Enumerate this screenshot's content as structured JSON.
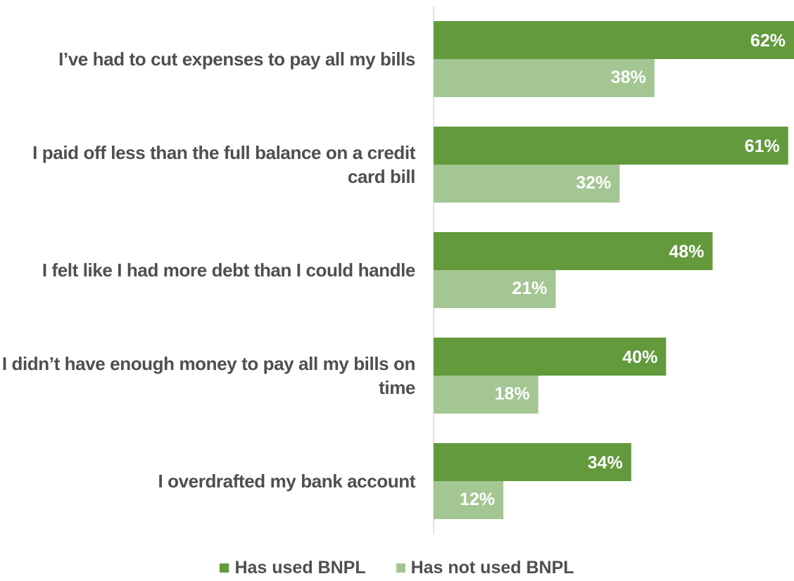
{
  "chart_data": {
    "type": "bar",
    "orientation": "horizontal",
    "title": "",
    "xlabel": "",
    "ylabel": "",
    "categories": [
      "I’ve had to cut expenses to pay all my bills",
      "I paid off less than the full balance on a credit card bill",
      "I felt like I had more debt than I could handle",
      "I didn’t have enough money to pay all my bills on time",
      "I overdrafted my bank account"
    ],
    "series": [
      {
        "name": "Has used BNPL",
        "color": "#629a3c",
        "values": [
          62,
          61,
          48,
          40,
          34
        ],
        "labels": [
          "62%",
          "61%",
          "48%",
          "40%",
          "34%"
        ]
      },
      {
        "name": "Has not used BNPL",
        "color": "#a3c693",
        "values": [
          38,
          32,
          21,
          18,
          12
        ],
        "labels": [
          "38%",
          "32%",
          "21%",
          "18%",
          "12%"
        ]
      }
    ],
    "xlim": [
      0,
      62
    ],
    "value_format": "percent",
    "grid": false,
    "legend_position": "bottom"
  }
}
